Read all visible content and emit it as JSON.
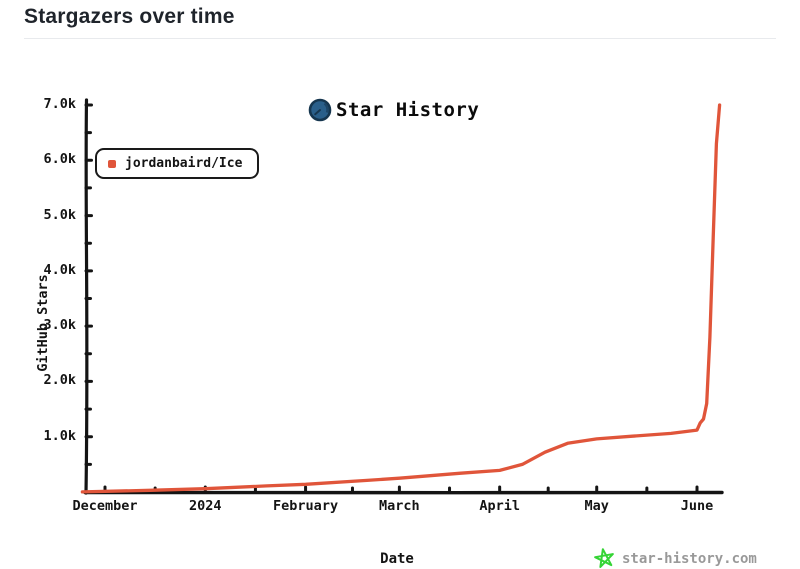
{
  "header": {
    "title": "Stargazers over time"
  },
  "chart_data": {
    "type": "line",
    "title": "Star History",
    "xlabel": "Date",
    "ylabel": "GitHub Stars",
    "grid": false,
    "legend_position": "top-left",
    "ylim": [
      0,
      7000
    ],
    "x_range": [
      "2023-11-24",
      "2024-06-08"
    ],
    "y_ticks": [
      {
        "label": "1.0k",
        "value": 1000
      },
      {
        "label": "2.0k",
        "value": 2000
      },
      {
        "label": "3.0k",
        "value": 3000
      },
      {
        "label": "4.0k",
        "value": 4000
      },
      {
        "label": "5.0k",
        "value": 5000
      },
      {
        "label": "6.0k",
        "value": 6000
      },
      {
        "label": "7.0k",
        "value": 7000
      }
    ],
    "x_ticks": [
      {
        "label": "December",
        "date": "2023-12-01"
      },
      {
        "label": "2024",
        "date": "2024-01-01"
      },
      {
        "label": "February",
        "date": "2024-02-01"
      },
      {
        "label": "March",
        "date": "2024-03-01"
      },
      {
        "label": "April",
        "date": "2024-04-01"
      },
      {
        "label": "May",
        "date": "2024-05-01"
      },
      {
        "label": "June",
        "date": "2024-06-01"
      }
    ],
    "series": [
      {
        "name": "jordanbaird/Ice",
        "color": "#e0553a",
        "points": [
          [
            "2023-11-24",
            2
          ],
          [
            "2023-12-15",
            30
          ],
          [
            "2024-01-01",
            60
          ],
          [
            "2024-01-20",
            110
          ],
          [
            "2024-02-01",
            140
          ],
          [
            "2024-02-20",
            210
          ],
          [
            "2024-03-01",
            250
          ],
          [
            "2024-03-20",
            340
          ],
          [
            "2024-04-01",
            390
          ],
          [
            "2024-04-08",
            500
          ],
          [
            "2024-04-15",
            720
          ],
          [
            "2024-04-22",
            880
          ],
          [
            "2024-05-01",
            960
          ],
          [
            "2024-05-12",
            1010
          ],
          [
            "2024-05-24",
            1060
          ],
          [
            "2024-06-01",
            1120
          ],
          [
            "2024-06-02",
            1250
          ],
          [
            "2024-06-03",
            1320
          ],
          [
            "2024-06-04",
            1600
          ],
          [
            "2024-06-05",
            2800
          ],
          [
            "2024-06-06",
            4600
          ],
          [
            "2024-06-07",
            6300
          ],
          [
            "2024-06-08",
            7000
          ]
        ]
      }
    ]
  },
  "watermark": {
    "label": "star-history.com",
    "star_color": "#35d435"
  },
  "logo_color": "#2a5f8a"
}
